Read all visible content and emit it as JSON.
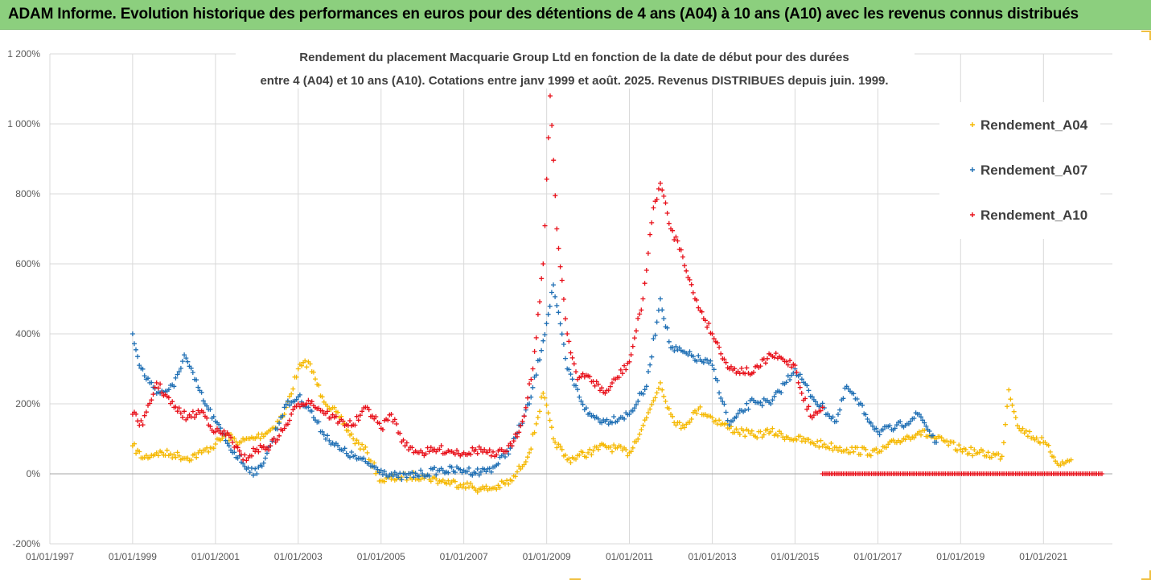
{
  "header": {
    "title": "ADAM Informe. Evolution historique des performances en euros pour des détentions de 4 ans (A04) à 10 ans (A10) avec les revenus connus distribués"
  },
  "colors": {
    "banner": "#8ccf7e",
    "A04": "#f5b800",
    "A07": "#1f6fb4",
    "A10": "#e8101a",
    "grid": "#d9d9d9"
  },
  "chart_data": {
    "type": "scatter",
    "title": "Rendement du placement Macquarie Group Ltd en fonction de la date de début pour des durées",
    "subtitle": "entre 4 (A04) et 10 ans (A10). Cotations entre janv 1999 et août. 2025. Revenus DISTRIBUES depuis juin. 1999.",
    "xlabel": "",
    "ylabel": "",
    "xlim": [
      "1997-01-01",
      "2022-09-01"
    ],
    "ylim": [
      -200,
      1200
    ],
    "grid": true,
    "legend_position": "top-right",
    "marker": "+",
    "x_ticks": [
      "01/01/1997",
      "01/01/1999",
      "01/01/2001",
      "01/01/2003",
      "01/01/2005",
      "01/01/2007",
      "01/01/2009",
      "01/01/2011",
      "01/01/2013",
      "01/01/2015",
      "01/01/2017",
      "01/01/2019",
      "01/01/2021"
    ],
    "x_tick_dates": [
      "1997-01-01",
      "1999-01-01",
      "2001-01-01",
      "2003-01-01",
      "2005-01-01",
      "2007-01-01",
      "2009-01-01",
      "2011-01-01",
      "2013-01-01",
      "2015-01-01",
      "2017-01-01",
      "2019-01-01",
      "2021-01-01"
    ],
    "y_ticks": [
      "-200%",
      "0%",
      "200%",
      "400%",
      "600%",
      "800%",
      "1 000%",
      "1 200%"
    ],
    "y_tick_values": [
      -200,
      0,
      200,
      400,
      600,
      800,
      1000,
      1200
    ],
    "series": [
      {
        "name": "Rendement_A04",
        "x": [
          "1999-01-01",
          "1999-04-01",
          "1999-08-01",
          "2000-01-01",
          "2000-05-01",
          "2000-09-01",
          "2001-01-01",
          "2001-04-01",
          "2001-08-01",
          "2002-01-01",
          "2002-05-01",
          "2002-09-01",
          "2003-01-01",
          "2003-04-01",
          "2003-08-01",
          "2004-01-01",
          "2004-05-01",
          "2004-09-01",
          "2005-01-01",
          "2005-06-01",
          "2006-01-01",
          "2006-06-01",
          "2007-01-01",
          "2007-06-01",
          "2007-10-01",
          "2008-03-01",
          "2008-08-01",
          "2008-12-01",
          "2009-03-01",
          "2009-07-01",
          "2010-01-01",
          "2010-06-01",
          "2011-01-01",
          "2011-06-01",
          "2011-10-01",
          "2012-01-01",
          "2012-04-01",
          "2012-09-01",
          "2013-01-01",
          "2013-06-01",
          "2014-01-01",
          "2014-06-01",
          "2015-01-01",
          "2015-06-01",
          "2016-01-01",
          "2016-04-01",
          "2017-01-01",
          "2017-06-01",
          "2018-01-01",
          "2018-06-01",
          "2019-01-01",
          "2019-06-01",
          "2020-01-01",
          "2020-03-01",
          "2020-06-01",
          "2021-01-01",
          "2021-06-01",
          "2021-09-01"
        ],
        "values": [
          80,
          45,
          60,
          55,
          45,
          60,
          85,
          110,
          90,
          105,
          125,
          170,
          300,
          320,
          220,
          160,
          100,
          60,
          -20,
          -10,
          -5,
          -20,
          -30,
          -45,
          -40,
          -20,
          60,
          230,
          100,
          40,
          60,
          80,
          60,
          160,
          260,
          170,
          130,
          185,
          160,
          130,
          110,
          120,
          100,
          90,
          75,
          70,
          60,
          90,
          120,
          100,
          70,
          60,
          50,
          240,
          130,
          90,
          25,
          40
        ]
      },
      {
        "name": "Rendement_A07",
        "x": [
          "1999-01-01",
          "1999-03-01",
          "1999-06-01",
          "1999-09-01",
          "2000-01-01",
          "2000-04-01",
          "2000-07-01",
          "2000-10-01",
          "2001-01-01",
          "2001-05-01",
          "2001-09-01",
          "2002-01-01",
          "2002-05-01",
          "2002-09-01",
          "2003-01-01",
          "2003-04-01",
          "2003-08-01",
          "2004-01-01",
          "2004-05-01",
          "2004-09-01",
          "2005-01-01",
          "2005-06-01",
          "2006-01-01",
          "2006-06-01",
          "2007-01-01",
          "2007-06-01",
          "2007-10-01",
          "2008-03-01",
          "2008-08-01",
          "2008-12-01",
          "2009-03-01",
          "2009-07-01",
          "2010-01-01",
          "2010-06-01",
          "2011-01-01",
          "2011-06-01",
          "2011-10-01",
          "2012-01-01",
          "2012-06-01",
          "2013-01-01",
          "2013-06-01",
          "2014-01-01",
          "2014-06-01",
          "2015-01-01",
          "2015-06-01",
          "2016-01-01",
          "2016-04-01",
          "2017-01-01",
          "2017-06-01",
          "2018-01-01",
          "2018-06-01"
        ],
        "values": [
          400,
          310,
          260,
          230,
          250,
          340,
          270,
          200,
          150,
          80,
          30,
          0,
          80,
          190,
          220,
          190,
          120,
          70,
          50,
          30,
          10,
          -10,
          0,
          10,
          10,
          5,
          20,
          80,
          200,
          380,
          540,
          300,
          170,
          150,
          170,
          250,
          500,
          360,
          340,
          310,
          140,
          210,
          200,
          300,
          220,
          150,
          250,
          120,
          130,
          170,
          90
        ]
      },
      {
        "name": "Rendement_A10",
        "x": [
          "1999-01-01",
          "1999-04-01",
          "1999-08-01",
          "2000-01-01",
          "2000-05-01",
          "2000-09-01",
          "2001-01-01",
          "2001-05-01",
          "2001-09-01",
          "2002-01-01",
          "2002-05-01",
          "2002-09-01",
          "2003-01-01",
          "2003-04-01",
          "2003-08-01",
          "2004-01-01",
          "2004-05-01",
          "2004-09-01",
          "2005-01-01",
          "2005-04-01",
          "2005-08-01",
          "2006-01-01",
          "2006-06-01",
          "2007-01-01",
          "2007-06-01",
          "2007-10-01",
          "2008-03-01",
          "2008-06-01",
          "2008-09-01",
          "2008-12-01",
          "2009-02-01",
          "2009-04-01",
          "2009-07-01",
          "2009-10-01",
          "2010-01-01",
          "2010-06-01",
          "2011-01-01",
          "2011-05-01",
          "2011-08-01",
          "2011-10-01",
          "2012-01-01",
          "2012-04-01",
          "2012-08-01",
          "2013-01-01",
          "2013-06-01",
          "2014-01-01",
          "2014-06-01",
          "2015-01-01",
          "2015-03-01",
          "2015-06-01",
          "2015-09-01"
        ],
        "values": [
          170,
          140,
          260,
          190,
          160,
          180,
          120,
          110,
          40,
          70,
          80,
          130,
          200,
          210,
          180,
          150,
          140,
          190,
          130,
          170,
          80,
          60,
          70,
          60,
          70,
          50,
          80,
          150,
          300,
          600,
          1080,
          700,
          400,
          270,
          280,
          230,
          320,
          500,
          760,
          830,
          700,
          640,
          500,
          400,
          300,
          290,
          340,
          310,
          230,
          160,
          190
        ]
      },
      {
        "name": "Rendement_A10",
        "x": [
          "2015-09-01",
          "2016-06-01",
          "2017-06-01",
          "2018-06-01",
          "2019-06-01",
          "2020-06-01",
          "2021-06-01",
          "2022-06-01"
        ],
        "values": [
          0,
          0,
          0,
          0,
          0,
          0,
          0,
          0
        ]
      }
    ],
    "legend": [
      "Rendement_A04",
      "Rendement_A07",
      "Rendement_A10"
    ]
  }
}
